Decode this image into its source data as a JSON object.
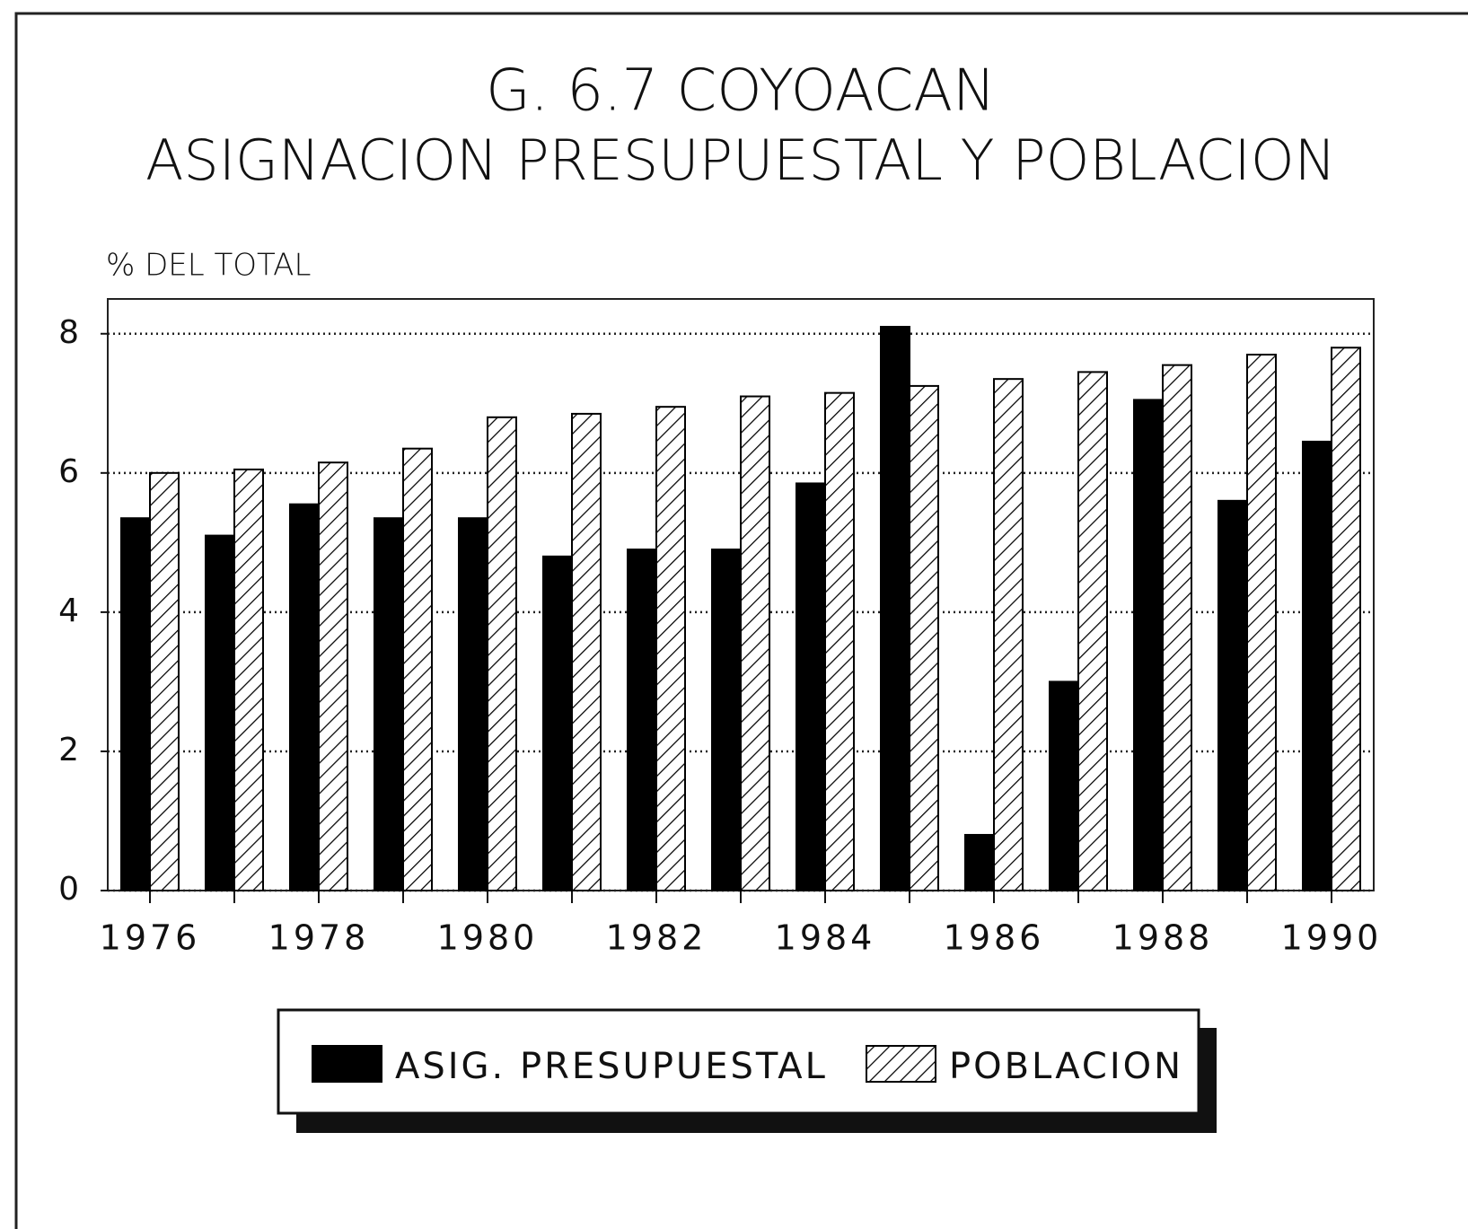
{
  "chart_data": {
    "type": "bar",
    "title": "G. 6.7 COYOACAN",
    "subtitle": "ASIGNACION PRESUPUESTAL Y POBLACION",
    "y_label": "% DEL TOTAL",
    "categories": [
      "1976",
      null,
      "1978",
      null,
      "1980",
      null,
      "1982",
      null,
      "1984",
      null,
      "1986",
      null,
      "1988",
      null,
      "1990"
    ],
    "series": [
      {
        "name": "ASIG. PRESUPUESTAL",
        "color": "#000000",
        "pattern": "solid",
        "values": [
          5.35,
          5.1,
          5.55,
          5.35,
          5.35,
          4.8,
          4.9,
          4.9,
          5.85,
          8.1,
          0.8,
          3.0,
          7.05,
          5.6,
          6.45
        ]
      },
      {
        "name": "POBLACION",
        "color": "#000000",
        "pattern": "hatch",
        "values": [
          6.0,
          6.05,
          6.15,
          6.35,
          6.8,
          6.85,
          6.95,
          7.1,
          7.15,
          7.25,
          7.35,
          7.45,
          7.55,
          7.7,
          7.8
        ]
      }
    ],
    "ylim": [
      0,
      8.5
    ],
    "yticks": [
      0,
      2,
      4,
      6,
      8
    ],
    "grid": true,
    "legend": "bottom"
  }
}
